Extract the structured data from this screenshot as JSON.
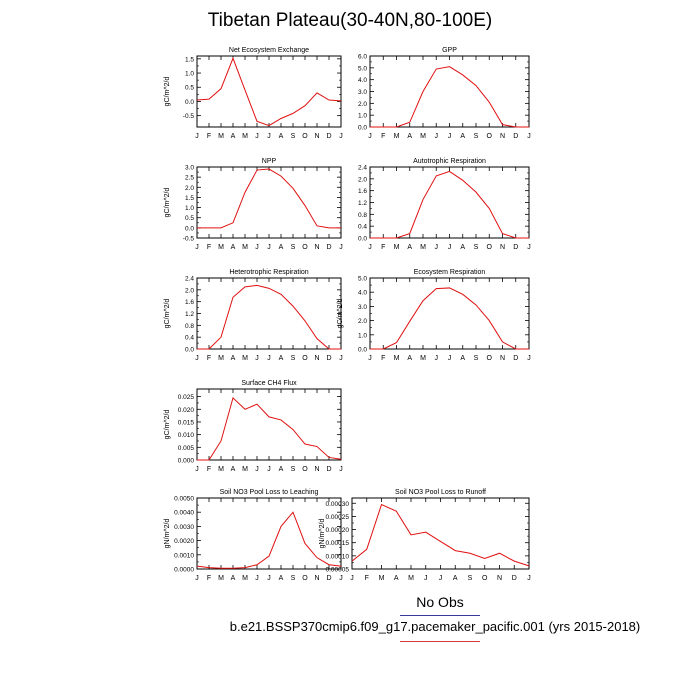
{
  "page": {
    "title": "Tibetan Plateau(30-40N,80-100E)",
    "legend_label": "No Obs",
    "footer_case": "b.e21.BSSP370cmip6.f09_g17.pacemaker_pacific.001 (yrs 2015-2018)"
  },
  "colors": {
    "line": "#e01010",
    "axis": "#000000",
    "legend_blue": "#3a3a9a",
    "legend_red": "#d23a3a"
  },
  "chart_data": [
    {
      "type": "line",
      "title": "Net Ecosystem Exchange",
      "ylabel": "gC/m^2/d",
      "categories": [
        "J",
        "F",
        "M",
        "A",
        "M",
        "J",
        "J",
        "A",
        "S",
        "O",
        "N",
        "D",
        "J"
      ],
      "values": [
        0.05,
        0.08,
        0.45,
        1.52,
        0.4,
        -0.7,
        -0.85,
        -0.6,
        -0.42,
        -0.15,
        0.3,
        0.05,
        0.02
      ],
      "ylim": [
        -0.9,
        1.6
      ],
      "yticks": [
        -0.5,
        0.0,
        0.5,
        1.0,
        1.5
      ],
      "ytick_labels": [
        "-0.5",
        "0.0",
        "0.5",
        "1.0",
        "1.5"
      ]
    },
    {
      "type": "line",
      "title": "GPP",
      "ylabel": "",
      "categories": [
        "J",
        "F",
        "M",
        "A",
        "M",
        "J",
        "J",
        "A",
        "S",
        "O",
        "N",
        "D",
        "J"
      ],
      "values": [
        0.0,
        0.0,
        0.0,
        0.4,
        3.0,
        4.9,
        5.1,
        4.4,
        3.5,
        2.1,
        0.2,
        0.0,
        0.0
      ],
      "ylim": [
        0.0,
        6.0
      ],
      "yticks": [
        0.0,
        1.0,
        2.0,
        3.0,
        4.0,
        5.0,
        6.0
      ],
      "ytick_labels": [
        "0.0",
        "1.0",
        "2.0",
        "3.0",
        "4.0",
        "5.0",
        "6.0"
      ]
    },
    {
      "type": "line",
      "title": "NPP",
      "ylabel": "gC/m^2/d",
      "categories": [
        "J",
        "F",
        "M",
        "A",
        "M",
        "J",
        "J",
        "A",
        "S",
        "O",
        "N",
        "D",
        "J"
      ],
      "values": [
        0.0,
        0.0,
        0.0,
        0.25,
        1.75,
        2.85,
        2.9,
        2.55,
        1.95,
        1.1,
        0.1,
        0.0,
        0.0
      ],
      "ylim": [
        -0.5,
        3.0
      ],
      "yticks": [
        -0.5,
        0.0,
        0.5,
        1.0,
        1.5,
        2.0,
        2.5,
        3.0
      ],
      "ytick_labels": [
        "-0.5",
        "0.0",
        "0.5",
        "1.0",
        "1.5",
        "2.0",
        "2.5",
        "3.0"
      ]
    },
    {
      "type": "line",
      "title": "Autotrophic Respiration",
      "ylabel": "",
      "categories": [
        "J",
        "F",
        "M",
        "A",
        "M",
        "J",
        "J",
        "A",
        "S",
        "O",
        "N",
        "D",
        "J"
      ],
      "values": [
        0.0,
        0.0,
        0.0,
        0.15,
        1.3,
        2.1,
        2.25,
        1.95,
        1.55,
        1.0,
        0.15,
        0.0,
        0.0
      ],
      "ylim": [
        0.0,
        2.4
      ],
      "yticks": [
        0.0,
        0.4,
        0.8,
        1.2,
        1.6,
        2.0,
        2.4
      ],
      "ytick_labels": [
        "0.0",
        "0.4",
        "0.8",
        "1.2",
        "1.6",
        "2.0",
        "2.4"
      ]
    },
    {
      "type": "line",
      "title": "Heterotrophic Respiration",
      "ylabel": "gC/m^2/d",
      "categories": [
        "J",
        "F",
        "M",
        "A",
        "M",
        "J",
        "J",
        "A",
        "S",
        "O",
        "N",
        "D",
        "J"
      ],
      "values": [
        0.0,
        0.0,
        0.4,
        1.75,
        2.1,
        2.15,
        2.05,
        1.85,
        1.45,
        0.95,
        0.35,
        0.0,
        0.0
      ],
      "ylim": [
        0.0,
        2.4
      ],
      "yticks": [
        0.0,
        0.4,
        0.8,
        1.2,
        1.6,
        2.0,
        2.4
      ],
      "ytick_labels": [
        "0.0",
        "0.4",
        "0.8",
        "1.2",
        "1.6",
        "2.0",
        "2.4"
      ]
    },
    {
      "type": "line",
      "title": "Ecosystem Respiration",
      "ylabel": "gC/m^2/d",
      "categories": [
        "J",
        "F",
        "M",
        "A",
        "M",
        "J",
        "J",
        "A",
        "S",
        "O",
        "N",
        "D",
        "J"
      ],
      "values": [
        0.0,
        0.0,
        0.45,
        1.95,
        3.4,
        4.25,
        4.3,
        3.85,
        3.1,
        2.0,
        0.5,
        0.0,
        0.0
      ],
      "ylim": [
        0.0,
        5.0
      ],
      "yticks": [
        0.0,
        1.0,
        2.0,
        3.0,
        4.0,
        5.0
      ],
      "ytick_labels": [
        "0.0",
        "1.0",
        "2.0",
        "3.0",
        "4.0",
        "5.0"
      ]
    },
    {
      "type": "line",
      "title": "Surface CH4 Flux",
      "ylabel": "gC/m^2/d",
      "categories": [
        "J",
        "F",
        "M",
        "A",
        "M",
        "J",
        "J",
        "A",
        "S",
        "O",
        "N",
        "D",
        "J"
      ],
      "values": [
        0.0,
        0.0,
        0.0075,
        0.0245,
        0.02,
        0.022,
        0.017,
        0.0158,
        0.012,
        0.0063,
        0.0053,
        0.001,
        0.0003
      ],
      "ylim": [
        0.0,
        0.028
      ],
      "yticks": [
        0.0,
        0.005,
        0.01,
        0.015,
        0.02,
        0.025
      ],
      "ytick_labels": [
        "0.000",
        "0.005",
        "0.010",
        "0.015",
        "0.020",
        "0.025"
      ]
    },
    {
      "type": "line",
      "title": "Soil NO3 Pool Loss to Leaching",
      "ylabel": "gN/m^2/d",
      "categories": [
        "J",
        "F",
        "M",
        "A",
        "M",
        "J",
        "J",
        "A",
        "S",
        "O",
        "N",
        "D",
        "J"
      ],
      "values": [
        0.0002,
        0.0001,
        5e-05,
        5e-05,
        0.0001,
        0.0003,
        0.0009,
        0.003,
        0.004,
        0.0018,
        0.0008,
        0.0003,
        0.0002
      ],
      "ylim": [
        0.0,
        0.005
      ],
      "yticks": [
        0.0,
        0.001,
        0.002,
        0.003,
        0.004,
        0.005
      ],
      "ytick_labels": [
        "0.0000",
        "0.0010",
        "0.0020",
        "0.0030",
        "0.0040",
        "0.0050"
      ]
    },
    {
      "type": "line",
      "title": "Soil NO3 Pool Loss to Runoff",
      "ylabel": "gN/m^2/d",
      "categories": [
        "J",
        "F",
        "M",
        "A",
        "M",
        "J",
        "J",
        "A",
        "S",
        "O",
        "N",
        "D",
        "J"
      ],
      "values": [
        8e-05,
        0.000125,
        0.000295,
        0.00027,
        0.00018,
        0.00019,
        0.000155,
        0.00012,
        0.00011,
        9e-05,
        0.00011,
        8e-05,
        6.2e-05
      ],
      "ylim": [
        5e-05,
        0.00032
      ],
      "yticks": [
        5e-05,
        0.0001,
        0.00015,
        0.0002,
        0.00025,
        0.0003
      ],
      "ytick_labels": [
        "0.00005",
        "0.00010",
        "0.00015",
        "0.00020",
        "0.00025",
        "0.00030"
      ]
    }
  ]
}
